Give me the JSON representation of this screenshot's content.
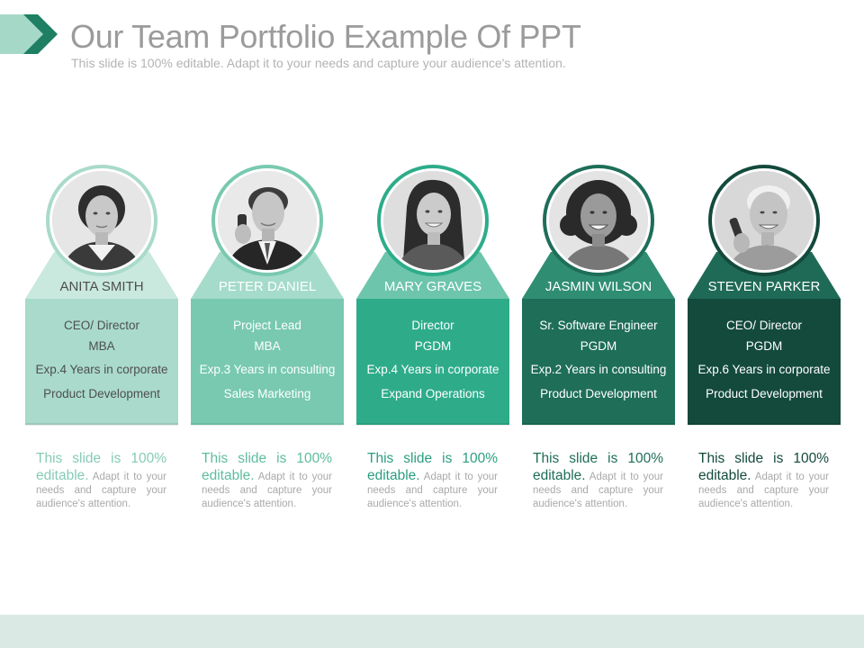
{
  "header": {
    "title": "Our Team Portfolio Example Of PPT",
    "subtitle": "This slide is 100% editable. Adapt it to your needs and capture your audience's attention."
  },
  "members": [
    {
      "name": "ANITA SMITH",
      "role": "CEO/ Director",
      "degree": "MBA",
      "experience": "Exp.4 Years in corporate",
      "focus": "Product Development",
      "desc_highlight": "This slide is 100% editable.",
      "desc_rest": " Adapt it to your needs and capture your audience's attention.",
      "colors": {
        "fill": "#a9dacb",
        "light": "#c9e8de",
        "text": "#4f4f4f",
        "accent": "#86cbb6"
      },
      "icon": "woman-portrait-icon"
    },
    {
      "name": "PETER DANIEL",
      "role": "Project Lead",
      "degree": "MBA",
      "experience": "Exp.3 Years in consulting",
      "focus": "Sales Marketing",
      "desc_highlight": "This slide is 100% editable.",
      "desc_rest": " Adapt it to your needs and capture your audience's attention.",
      "colors": {
        "fill": "#78c9b0",
        "light": "#a5dbca",
        "text": "#ffffff",
        "accent": "#5dbc9f"
      },
      "icon": "man-phone-portrait-icon"
    },
    {
      "name": "MARY GRAVES",
      "role": "Director",
      "degree": "PGDM",
      "experience": "Exp.4 Years in corporate",
      "focus": "Expand Operations",
      "desc_highlight": "This slide is 100% editable.",
      "desc_rest": " Adapt it to your needs and capture your audience's attention.",
      "colors": {
        "fill": "#2eac8a",
        "light": "#6dc5ab",
        "text": "#ffffff",
        "accent": "#2a9e7f"
      },
      "icon": "woman-smiling-portrait-icon"
    },
    {
      "name": "JASMIN WILSON",
      "role": "Sr. Software Engineer",
      "degree": "PGDM",
      "experience": "Exp.2 Years in consulting",
      "focus": "Product Development",
      "desc_highlight": "This slide is 100% editable.",
      "desc_rest": " Adapt it to your needs and capture your audience's attention.",
      "colors": {
        "fill": "#1e6e58",
        "light": "#2f8d72",
        "text": "#ffffff",
        "accent": "#1e6e58"
      },
      "icon": "woman-curly-hair-portrait-icon"
    },
    {
      "name": "STEVEN PARKER",
      "role": "CEO/ Director",
      "degree": "PGDM",
      "experience": "Exp.6 Years in corporate",
      "focus": "Product Development",
      "desc_highlight": "This slide is 100% editable.",
      "desc_rest": " Adapt it to your needs and capture your audience's attention.",
      "colors": {
        "fill": "#134a3c",
        "light": "#1f6a56",
        "text": "#ffffff",
        "accent": "#134a3c"
      },
      "icon": "older-man-phone-portrait-icon"
    }
  ],
  "theme": {
    "chevron_dark": "#1e7f63",
    "chevron_light": "#a6d8c8",
    "footer_band": "#dbe9e5"
  }
}
